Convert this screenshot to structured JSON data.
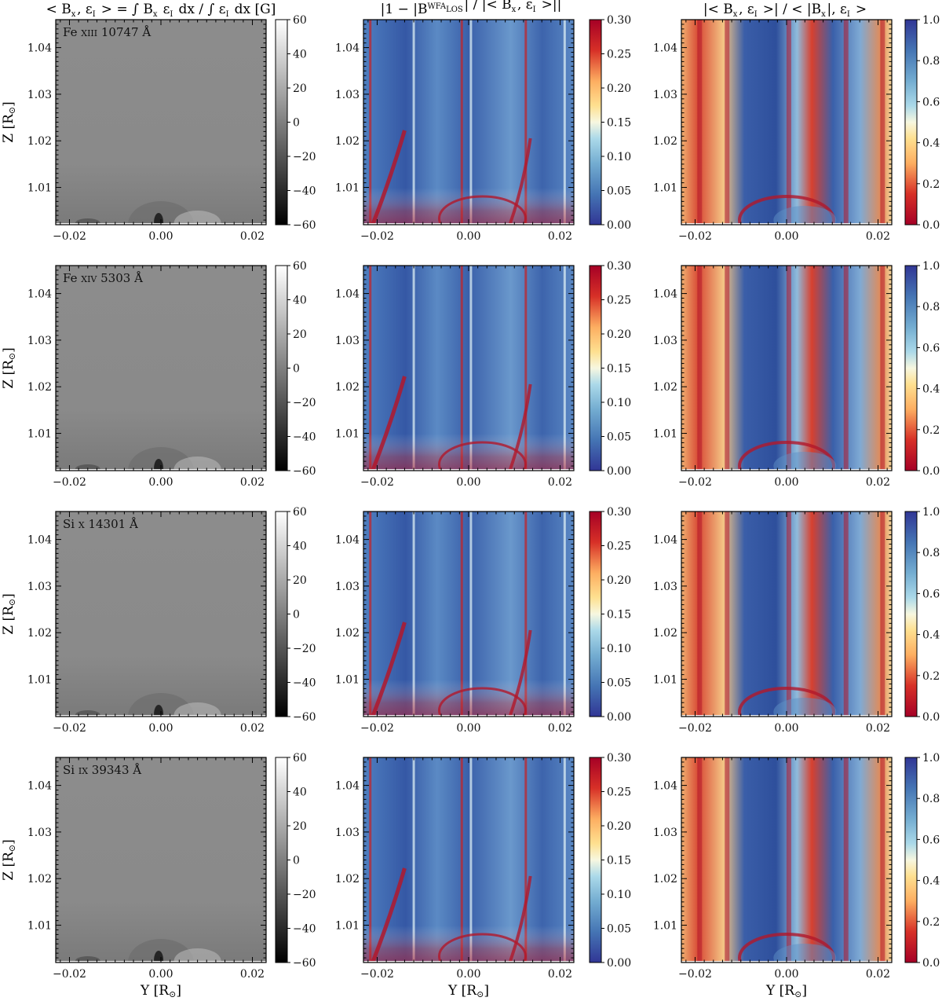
{
  "chart_data": [
    {
      "type": "heatmap",
      "figure": "line-of-sight weighted magnetic field and weak-field-approximation diagnostics",
      "columns": [
        {
          "id": "col1",
          "title": "<B_x, ε_I> = ∫ B_x ε_I dx / ∫ ε_I dx [G]",
          "title_parts": {
            "lhs": "< B",
            "sub1": "x",
            "mid": ", ε",
            "sub2": "I",
            "eq": " > = ∫ B",
            "sub3": "x",
            "rest": " ε",
            "sub4": "I",
            "dx": " dx / ∫ ε",
            "sub5": "I",
            "tail": " dx [G]"
          },
          "colormap": "grayscale",
          "colorbar": {
            "min": -60,
            "max": 60,
            "ticks": [
              "60",
              "40",
              "20",
              "0",
              "−20",
              "−40",
              "−60"
            ],
            "tick_values": [
              60,
              40,
              20,
              0,
              -20,
              -40,
              -60
            ]
          }
        },
        {
          "id": "col2",
          "title": "|1 − |B_LOS^WFA| / |<B_x, ε_I>||",
          "colormap": "RdYlBu_r",
          "colorbar": {
            "min": 0.0,
            "max": 0.3,
            "ticks": [
              "0.30",
              "0.25",
              "0.20",
              "0.15",
              "0.10",
              "0.05",
              "0.00"
            ],
            "tick_values": [
              0.3,
              0.25,
              0.2,
              0.15,
              0.1,
              0.05,
              0.0
            ]
          }
        },
        {
          "id": "col3",
          "title": "|<B_x, ε_I>| / <|B_x|, ε_I>",
          "colormap": "RdYlBu",
          "colorbar": {
            "min": 0.0,
            "max": 1.0,
            "ticks": [
              "1.0",
              "0.8",
              "0.6",
              "0.4",
              "0.2",
              "0.0"
            ],
            "tick_values": [
              1.0,
              0.8,
              0.6,
              0.4,
              0.2,
              0.0
            ]
          }
        }
      ],
      "rows": [
        {
          "line": "Fe",
          "ion": "XIII",
          "wavelength": "10747 Å"
        },
        {
          "line": "Fe",
          "ion": "XIV",
          "wavelength": "5303 Å"
        },
        {
          "line": "Si",
          "ion": "X",
          "wavelength": "14301 Å"
        },
        {
          "line": "Si",
          "ion": "IX",
          "wavelength": "39343 Å"
        }
      ],
      "x_axis": {
        "label": "Y [R⊙]",
        "label_main": "Y [R",
        "label_sym": "⊙",
        "label_end": "]",
        "range": [
          -0.023,
          0.023
        ],
        "ticks": [
          "−0.02",
          "0.00",
          "0.02"
        ],
        "tick_values": [
          -0.02,
          0.0,
          0.02
        ]
      },
      "y_axis": {
        "label": "Z [R⊙]",
        "label_main": "Z [R",
        "label_sym": "⊙",
        "label_end": "]",
        "range": [
          1.002,
          1.046
        ],
        "ticks": [
          "1.01",
          "1.02",
          "1.03",
          "1.04"
        ],
        "tick_values": [
          1.01,
          1.02,
          1.03,
          1.04
        ]
      },
      "colors": {
        "gray_mid": "#8a8a8a",
        "red": "#b2182b",
        "blue": "#2c5fa8",
        "yellow": "#fee090",
        "white": "#f4f4f4"
      }
    }
  ]
}
